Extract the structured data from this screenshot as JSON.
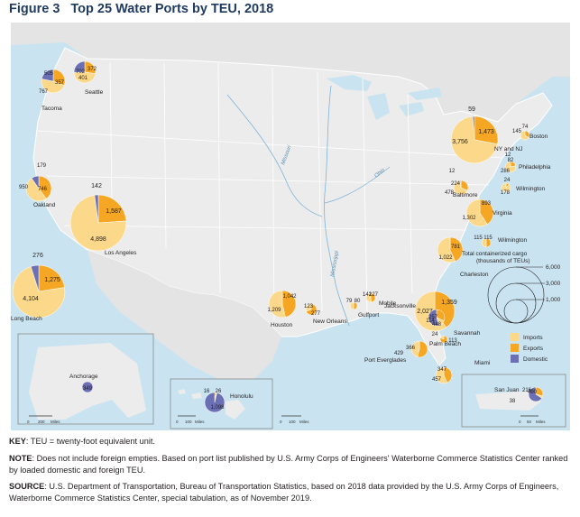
{
  "header": {
    "figure_label": "Figure 3",
    "title": "Top 25 Water Ports by TEU, 2018"
  },
  "colors": {
    "imports": "#fcd98a",
    "exports": "#f5a623",
    "domestic": "#6b6fb3",
    "water": "#c9e4f0",
    "land": "#ececec",
    "border": "#ffffff"
  },
  "legend": {
    "items": [
      {
        "key": "imports",
        "label": "Imports"
      },
      {
        "key": "exports",
        "label": "Exports"
      },
      {
        "key": "domestic",
        "label": "Domestic"
      }
    ],
    "size_title_1": "Total containerized cargo",
    "size_title_2": "(thousands of TEUs)",
    "size_values": [
      "6,000",
      "3,000",
      "1,000"
    ]
  },
  "rivers": [
    "Missouri",
    "Mississippi",
    "Ohio"
  ],
  "insets": {
    "alaska": {
      "scale_ticks": [
        "0",
        "200",
        "Miles"
      ]
    },
    "hawaii": {
      "scale_ticks": [
        "0",
        "100",
        "Miles"
      ]
    },
    "main": {
      "scale_ticks": [
        "0",
        "100",
        "Miles"
      ]
    },
    "puerto_rico": {
      "scale_ticks": [
        "0",
        "50",
        "Miles"
      ]
    }
  },
  "chart_data": {
    "type": "pie",
    "measure": "TEU (thousands)",
    "ports": [
      {
        "name": "Los Angeles",
        "imports": 4898,
        "exports": 1587,
        "domestic": 142
      },
      {
        "name": "Long Beach",
        "imports": 4104,
        "exports": 1275,
        "domestic": 276
      },
      {
        "name": "NY and NJ",
        "imports": 3756,
        "exports": 1473,
        "domestic": 59
      },
      {
        "name": "Savannah",
        "imports": 2027,
        "exports": 1359,
        "domestic": 0
      },
      {
        "name": "Virginia",
        "imports": 1302,
        "exports": 893,
        "domestic": 0
      },
      {
        "name": "Charleston",
        "imports": 1022,
        "exports": 781,
        "domestic": 0
      },
      {
        "name": "Houston",
        "imports": 1209,
        "exports": 1042,
        "domestic": 0
      },
      {
        "name": "Oakland",
        "imports": 950,
        "exports": 746,
        "domestic": 179
      },
      {
        "name": "Tacoma",
        "imports": 767,
        "exports": 505,
        "domestic": 357
      },
      {
        "name": "Seattle",
        "imports": 702,
        "exports": 401,
        "domestic": 372
      },
      {
        "name": "Miami",
        "imports": 457,
        "exports": 347,
        "domestic": 0
      },
      {
        "name": "Port Everglades",
        "imports": 366,
        "exports": 429,
        "domestic": 0
      },
      {
        "name": "Jacksonville",
        "imports": 114,
        "exports": 257,
        "domestic": 448
      },
      {
        "name": "Baltimore",
        "imports": 478,
        "exports": 224,
        "domestic": 12
      },
      {
        "name": "Honolulu",
        "imports": 16,
        "exports": 26,
        "domestic": 1098
      },
      {
        "name": "San Juan",
        "imports": 38,
        "exports": 216,
        "domestic": 490
      },
      {
        "name": "Anchorage",
        "imports": 0,
        "exports": 0,
        "domestic": 349
      },
      {
        "name": "Philadelphia",
        "imports": 286,
        "exports": 82,
        "domestic": 12
      },
      {
        "name": "New Orleans",
        "imports": 123,
        "exports": 277,
        "domestic": 0
      },
      {
        "name": "Wilmington",
        "imports": 178,
        "exports": 24,
        "domestic": 0,
        "state": "DE"
      },
      {
        "name": "Wilmington",
        "imports": 115,
        "exports": 115,
        "domestic": 0,
        "state": "NC"
      },
      {
        "name": "Mobile",
        "imports": 142,
        "exports": 127,
        "domestic": 0
      },
      {
        "name": "Boston",
        "imports": 145,
        "exports": 74,
        "domestic": 0
      },
      {
        "name": "Gulfport",
        "imports": 79,
        "exports": 80,
        "domestic": 0
      },
      {
        "name": "Palm Beach",
        "imports": 24,
        "exports": 113,
        "domestic": 0
      }
    ]
  },
  "notes": {
    "key_label": "KEY",
    "key_text": ": TEU = twenty-foot equivalent unit.",
    "note_label": "NOTE",
    "note_text": ": Does not include foreign empties. Based on port list published by U.S. Army Corps of Engineers' Waterborne Commerce Statistics Center ranked by loaded domestic and foreign TEU.",
    "source_label": "SOURCE",
    "source_text": ": U.S. Department of Transportation, Bureau of Transportation Statistics, based on 2018 data provided by the U.S. Army Corps of Engineers, Waterborne Commerce Statistics Center, special tabulation, as of November 2019."
  }
}
